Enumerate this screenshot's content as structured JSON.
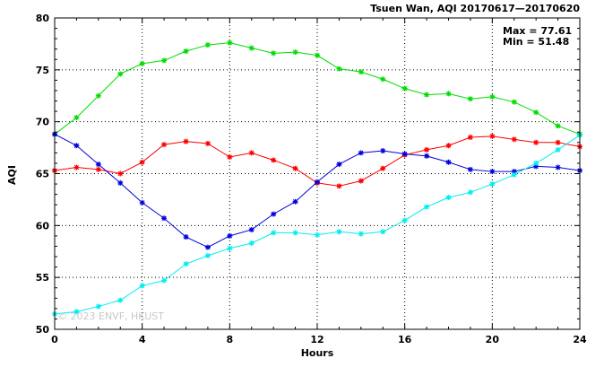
{
  "chart_data": {
    "type": "line",
    "title": "Tsuen Wan, AQI 20170617—20170620",
    "xlabel": "Hours",
    "ylabel": "AQI",
    "xlim": [
      0,
      24
    ],
    "ylim": [
      50,
      80
    ],
    "xticks": [
      0,
      4,
      8,
      12,
      16,
      20,
      24
    ],
    "yticks": [
      50,
      55,
      60,
      65,
      70,
      75,
      80
    ],
    "grid": true,
    "annotations": {
      "max": "Max = 77.61",
      "min": "Min = 51.48"
    },
    "watermark": "© 2023 ENVF, HKUST",
    "x": [
      0,
      1,
      2,
      3,
      4,
      5,
      6,
      7,
      8,
      9,
      10,
      11,
      12,
      13,
      14,
      15,
      16,
      17,
      18,
      19,
      20,
      21,
      22,
      23,
      24
    ],
    "series": [
      {
        "color": "#ff0000",
        "values": [
          65.3,
          65.6,
          65.4,
          65.0,
          66.1,
          67.8,
          68.1,
          67.9,
          66.6,
          67.0,
          66.3,
          65.5,
          64.1,
          63.8,
          64.3,
          65.5,
          66.8,
          67.3,
          67.7,
          68.5,
          68.6,
          68.3,
          68.0,
          68.0,
          67.6
        ]
      },
      {
        "color": "#00dd00",
        "values": [
          68.8,
          70.4,
          72.5,
          74.6,
          75.6,
          75.9,
          76.8,
          77.4,
          77.61,
          77.1,
          76.6,
          76.7,
          76.4,
          75.1,
          74.8,
          74.1,
          73.2,
          72.6,
          72.7,
          72.2,
          72.4,
          71.9,
          70.9,
          69.6,
          68.8
        ]
      },
      {
        "color": "#0000dd",
        "values": [
          68.8,
          67.7,
          65.9,
          64.1,
          62.2,
          60.7,
          58.9,
          57.9,
          59.0,
          59.6,
          61.1,
          62.3,
          64.2,
          65.9,
          67.0,
          67.2,
          66.9,
          66.7,
          66.1,
          65.4,
          65.2,
          65.2,
          65.7,
          65.6,
          65.3
        ]
      },
      {
        "color": "#00eeee",
        "values": [
          51.48,
          51.7,
          52.2,
          52.8,
          54.2,
          54.7,
          56.3,
          57.1,
          57.8,
          58.3,
          59.3,
          59.3,
          59.1,
          59.4,
          59.2,
          59.4,
          60.5,
          61.8,
          62.7,
          63.2,
          64.0,
          64.9,
          66.0,
          67.3,
          68.7
        ]
      }
    ]
  }
}
